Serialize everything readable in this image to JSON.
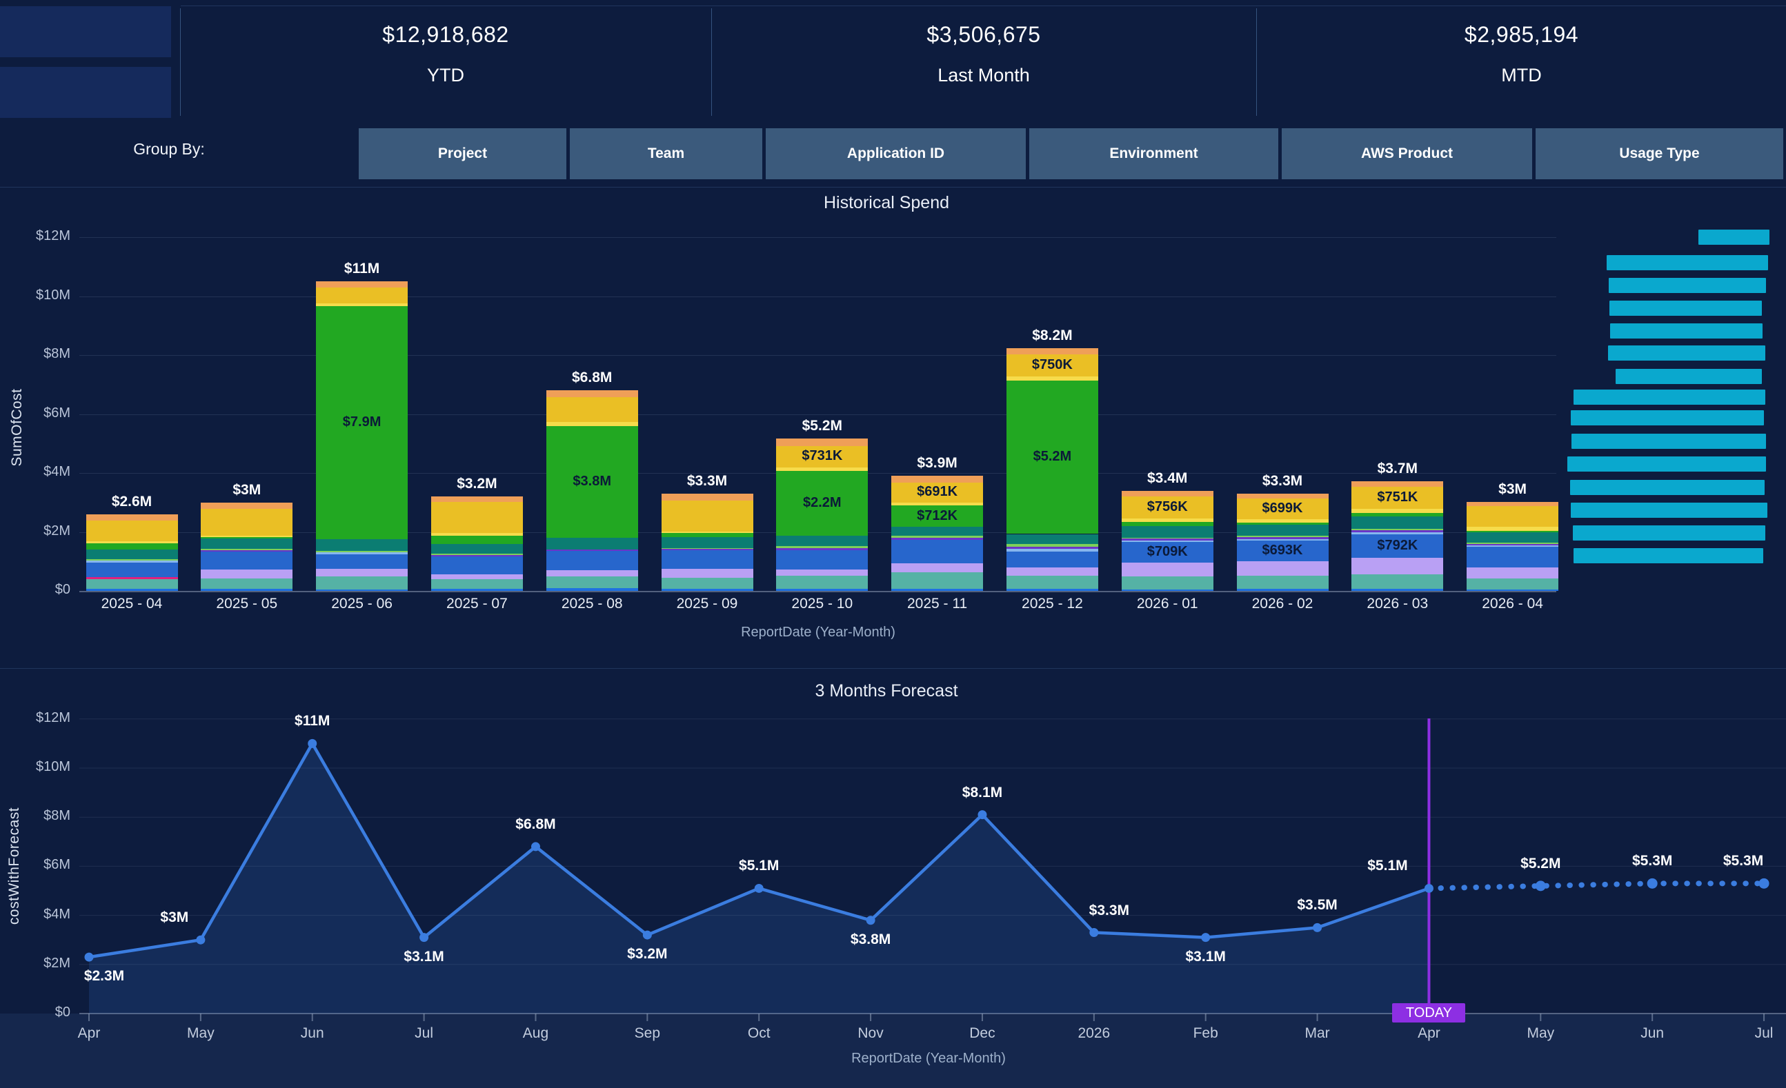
{
  "header": {
    "cards": [
      {
        "value": "$12,918,682",
        "label": "YTD"
      },
      {
        "value": "$3,506,675",
        "label": "Last Month"
      },
      {
        "value": "$2,985,194",
        "label": "MTD"
      }
    ],
    "logo_note": "redacted logo blocks"
  },
  "group_by": {
    "label": "Group By:",
    "buttons": [
      "Project",
      "Team",
      "Application ID",
      "Environment",
      "AWS Product",
      "Usage Type"
    ]
  },
  "colors": {
    "background": "#0d1c3e",
    "button": "#3b5a7c",
    "legend_redaction": "#0aa8ce",
    "today_marker": "#8d2fe3",
    "line": "#3b7de0"
  },
  "chart_data": [
    {
      "type": "bar",
      "stacked": true,
      "title": "Historical Spend",
      "xlabel": "ReportDate (Year-Month)",
      "ylabel": "SumOfCost",
      "y_unit": "USD millions",
      "ylim": [
        0,
        12
      ],
      "yticks": [
        0,
        2,
        4,
        6,
        8,
        10,
        12
      ],
      "ytick_labels": [
        "$0",
        "$2M",
        "$4M",
        "$6M",
        "$8M",
        "$10M",
        "$12M"
      ],
      "grid": true,
      "legend": {
        "position": "right",
        "note": "legend labels redacted",
        "color": "#0aa8ce"
      },
      "palette": {
        "base": "#1f71e0",
        "teal": "#55b2a5",
        "pink": "#e0217e",
        "lavender": "#b9a0f4",
        "royal": "#2766cc",
        "ltblue": "#86b6ee",
        "purple": "#6a35c8",
        "ltgreen": "#7ed058",
        "dkteal": "#0b7d72",
        "green": "#22a822",
        "yellow": "#f6dc4b",
        "gold": "#eabf25",
        "orange": "#ef9f58"
      },
      "categories": [
        "2025 - 04",
        "2025 - 05",
        "2025 - 06",
        "2025 - 07",
        "2025 - 08",
        "2025 - 09",
        "2025 - 10",
        "2025 - 11",
        "2025 - 12",
        "2026 - 01",
        "2026 - 02",
        "2026 - 03",
        "2026 - 04"
      ],
      "bars": [
        {
          "category": "2025 - 04",
          "total_label": "$2.6M",
          "segments": [
            [
              "base",
              0.06
            ],
            [
              "teal",
              0.34
            ],
            [
              "pink",
              0.06
            ],
            [
              "royal",
              0.5
            ],
            [
              "ltblue",
              0.07
            ],
            [
              "ltgreen",
              0.05
            ],
            [
              "dkteal",
              0.32
            ],
            [
              "green",
              0.22
            ],
            [
              "yellow",
              0.06
            ],
            [
              "gold",
              0.7
            ],
            [
              "orange",
              0.22
            ]
          ]
        },
        {
          "category": "2025 - 05",
          "total_label": "$3M",
          "segments": [
            [
              "base",
              0.07
            ],
            [
              "teal",
              0.36
            ],
            [
              "lavender",
              0.3
            ],
            [
              "royal",
              0.6
            ],
            [
              "purple",
              0.05
            ],
            [
              "ltgreen",
              0.05
            ],
            [
              "dkteal",
              0.34
            ],
            [
              "green",
              0.06
            ],
            [
              "yellow",
              0.05
            ],
            [
              "gold",
              0.9
            ],
            [
              "orange",
              0.22
            ]
          ]
        },
        {
          "category": "2025 - 06",
          "total_label": "$11M",
          "segments": [
            [
              "base",
              0.05
            ],
            [
              "teal",
              0.45
            ],
            [
              "lavender",
              0.25
            ],
            [
              "royal",
              0.5
            ],
            [
              "ltblue",
              0.06
            ],
            [
              "ltgreen",
              0.05
            ],
            [
              "dkteal",
              0.39
            ],
            [
              "green",
              7.9,
              "$7.9M"
            ],
            [
              "yellow",
              0.1
            ],
            [
              "gold",
              0.55
            ],
            [
              "orange",
              0.2
            ]
          ]
        },
        {
          "category": "2025 - 07",
          "total_label": "$3.2M",
          "segments": [
            [
              "base",
              0.06
            ],
            [
              "teal",
              0.33
            ],
            [
              "lavender",
              0.18
            ],
            [
              "royal",
              0.6
            ],
            [
              "purple",
              0.05
            ],
            [
              "ltgreen",
              0.04
            ],
            [
              "dkteal",
              0.32
            ],
            [
              "green",
              0.3
            ],
            [
              "yellow",
              0.09
            ],
            [
              "gold",
              1.05
            ],
            [
              "orange",
              0.18
            ]
          ]
        },
        {
          "category": "2025 - 08",
          "total_label": "$6.8M",
          "segments": [
            [
              "base",
              0.1
            ],
            [
              "teal",
              0.38
            ],
            [
              "lavender",
              0.22
            ],
            [
              "royal",
              0.65
            ],
            [
              "purple",
              0.06
            ],
            [
              "dkteal",
              0.39
            ],
            [
              "green",
              3.8,
              "$3.8M"
            ],
            [
              "yellow",
              0.12
            ],
            [
              "gold",
              0.85
            ],
            [
              "orange",
              0.23
            ]
          ]
        },
        {
          "category": "2025 - 09",
          "total_label": "$3.3M",
          "segments": [
            [
              "base",
              0.07
            ],
            [
              "teal",
              0.38
            ],
            [
              "lavender",
              0.3
            ],
            [
              "royal",
              0.62
            ],
            [
              "purple",
              0.05
            ],
            [
              "ltgreen",
              0.04
            ],
            [
              "dkteal",
              0.36
            ],
            [
              "green",
              0.15
            ],
            [
              "yellow",
              0.04
            ],
            [
              "gold",
              1.05
            ],
            [
              "orange",
              0.24
            ]
          ]
        },
        {
          "category": "2025 - 10",
          "total_label": "$5.2M",
          "segments": [
            [
              "base",
              0.06
            ],
            [
              "teal",
              0.45
            ],
            [
              "lavender",
              0.22
            ],
            [
              "royal",
              0.65
            ],
            [
              "purple",
              0.07
            ],
            [
              "ltgreen",
              0.06
            ],
            [
              "dkteal",
              0.36
            ],
            [
              "green",
              2.2,
              "$2.2M"
            ],
            [
              "yellow",
              0.12
            ],
            [
              "gold",
              0.731,
              "$731K"
            ],
            [
              "orange",
              0.25
            ]
          ]
        },
        {
          "category": "2025 - 11",
          "total_label": "$3.9M",
          "segments": [
            [
              "base",
              0.08
            ],
            [
              "teal",
              0.55
            ],
            [
              "lavender",
              0.31
            ],
            [
              "royal",
              0.8
            ],
            [
              "purple",
              0.06
            ],
            [
              "ltgreen",
              0.06
            ],
            [
              "dkteal",
              0.32
            ],
            [
              "green",
              0.712,
              "$712K"
            ],
            [
              "yellow",
              0.1
            ],
            [
              "gold",
              0.691,
              "$691K"
            ],
            [
              "orange",
              0.22
            ]
          ]
        },
        {
          "category": "2025 - 12",
          "total_label": "$8.2M",
          "segments": [
            [
              "base",
              0.06
            ],
            [
              "teal",
              0.45
            ],
            [
              "lavender",
              0.28
            ],
            [
              "royal",
              0.55
            ],
            [
              "ltblue",
              0.08
            ],
            [
              "purple",
              0.07
            ],
            [
              "ltgreen",
              0.09
            ],
            [
              "dkteal",
              0.35
            ],
            [
              "green",
              5.2,
              "$5.2M"
            ],
            [
              "yellow",
              0.14
            ],
            [
              "gold",
              0.75,
              "$750K"
            ],
            [
              "orange",
              0.21
            ]
          ]
        },
        {
          "category": "2026 - 01",
          "total_label": "$3.4M",
          "segments": [
            [
              "base",
              0.05
            ],
            [
              "teal",
              0.45
            ],
            [
              "lavender",
              0.45
            ],
            [
              "royal",
              0.709,
              "$709K"
            ],
            [
              "ltblue",
              0.06
            ],
            [
              "purple",
              0.05
            ],
            [
              "ltgreen",
              0.04
            ],
            [
              "dkteal",
              0.4
            ],
            [
              "green",
              0.12
            ],
            [
              "yellow",
              0.13
            ],
            [
              "gold",
              0.756,
              "$756K"
            ],
            [
              "orange",
              0.17
            ]
          ]
        },
        {
          "category": "2026 - 02",
          "total_label": "$3.3M",
          "segments": [
            [
              "base",
              0.06
            ],
            [
              "teal",
              0.45
            ],
            [
              "lavender",
              0.5
            ],
            [
              "royal",
              0.693,
              "$693K"
            ],
            [
              "ltblue",
              0.05
            ],
            [
              "purple",
              0.06
            ],
            [
              "ltgreen",
              0.05
            ],
            [
              "dkteal",
              0.38
            ],
            [
              "green",
              0.08
            ],
            [
              "yellow",
              0.12
            ],
            [
              "gold",
              0.699,
              "$699K"
            ],
            [
              "orange",
              0.15
            ]
          ]
        },
        {
          "category": "2026 - 03",
          "total_label": "$3.7M",
          "segments": [
            [
              "base",
              0.07
            ],
            [
              "teal",
              0.48
            ],
            [
              "lavender",
              0.58
            ],
            [
              "royal",
              0.792,
              "$792K"
            ],
            [
              "ltblue",
              0.06
            ],
            [
              "purple",
              0.07
            ],
            [
              "ltgreen",
              0.05
            ],
            [
              "dkteal",
              0.42
            ],
            [
              "green",
              0.12
            ],
            [
              "yellow",
              0.15
            ],
            [
              "gold",
              0.751,
              "$751K"
            ],
            [
              "orange",
              0.18
            ]
          ]
        },
        {
          "category": "2026 - 04",
          "total_label": "$3M",
          "segments": [
            [
              "base",
              0.04
            ],
            [
              "teal",
              0.38
            ],
            [
              "lavender",
              0.38
            ],
            [
              "royal",
              0.7
            ],
            [
              "ltblue",
              0.05
            ],
            [
              "purple",
              0.05
            ],
            [
              "ltgreen",
              0.04
            ],
            [
              "dkteal",
              0.34
            ],
            [
              "green",
              0.06
            ],
            [
              "yellow",
              0.14
            ],
            [
              "gold",
              0.7
            ],
            [
              "orange",
              0.14
            ]
          ]
        }
      ],
      "legend_redactions": [
        [
          333,
          2462,
          103
        ],
        [
          370,
          2329,
          234
        ],
        [
          403,
          2332,
          228
        ],
        [
          436,
          2333,
          221
        ],
        [
          469,
          2334,
          221
        ],
        [
          501,
          2331,
          228
        ],
        [
          535,
          2342,
          212
        ],
        [
          565,
          2281,
          278
        ],
        [
          595,
          2277,
          280
        ],
        [
          629,
          2278,
          282
        ],
        [
          662,
          2272,
          288
        ],
        [
          696,
          2276,
          282
        ],
        [
          729,
          2277,
          285
        ],
        [
          762,
          2280,
          279
        ],
        [
          795,
          2281,
          275
        ]
      ]
    },
    {
      "type": "line",
      "title": "3 Months Forecast",
      "xlabel": "ReportDate (Year-Month)",
      "ylabel": "costWithForecast",
      "y_unit": "USD millions",
      "ylim": [
        0,
        12
      ],
      "yticks": [
        0,
        2,
        4,
        6,
        8,
        10,
        12
      ],
      "ytick_labels": [
        "$0",
        "$2M",
        "$4M",
        "$6M",
        "$8M",
        "$10M",
        "$12M"
      ],
      "grid": true,
      "x": [
        "Apr",
        "May",
        "Jun",
        "Jul",
        "Aug",
        "Sep",
        "Oct",
        "Nov",
        "Dec",
        "2026",
        "Feb",
        "Mar",
        "Apr",
        "May",
        "Jun",
        "Jul"
      ],
      "values": [
        2.3,
        3,
        11,
        3.1,
        6.8,
        3.2,
        5.1,
        3.8,
        8.1,
        3.3,
        3.1,
        3.5,
        5.1,
        5.2,
        5.3,
        5.3
      ],
      "point_labels": [
        "$2.3M",
        "$3M",
        "$11M",
        "$3.1M",
        "$6.8M",
        "$3.2M",
        "$5.1M",
        "$3.8M",
        "$8.1M",
        "$3.3M",
        "$3.1M",
        "$3.5M",
        "$5.1M",
        "$5.2M",
        "$5.3M",
        "$5.3M"
      ],
      "label_side": [
        "below",
        "above",
        "above",
        "below",
        "above",
        "below",
        "above",
        "below",
        "above",
        "above",
        "below",
        "above",
        "above",
        "above",
        "above",
        "above"
      ],
      "label_dx": [
        22,
        -38,
        0,
        0,
        0,
        0,
        0,
        0,
        0,
        22,
        0,
        0,
        -60,
        0,
        0,
        -30
      ],
      "forecast_start_index": 12,
      "line_color": "#3b7de0",
      "area_color": "rgba(62,132,228,0.16)",
      "today": {
        "label": "TODAY",
        "index": 12,
        "color": "#8d2fe3"
      }
    }
  ]
}
